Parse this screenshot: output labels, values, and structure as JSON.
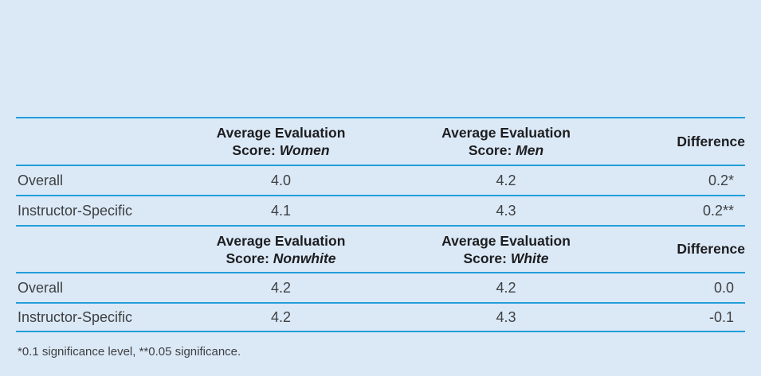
{
  "page": {
    "background_color": "#dbe9f7",
    "rule_color": "#239dd8",
    "header_text_color": "#1d1d1f",
    "body_text_color": "#3e4042"
  },
  "chart_data": [
    {
      "type": "table",
      "columns": [
        "",
        "Average Evaluation Score: Women",
        "Average Evaluation Score: Men",
        "Difference"
      ],
      "header_parts": [
        {
          "line1": "Average Evaluation",
          "line2_prefix": "Score:",
          "line2_italic": "Women"
        },
        {
          "line1": "Average Evaluation",
          "line2_prefix": "Score:",
          "line2_italic": "Men"
        }
      ],
      "difference_label": "Difference",
      "rows": [
        [
          "Overall",
          "4.0",
          "4.2",
          "0.2*"
        ],
        [
          "Instructor-Specific",
          "4.1",
          "4.3",
          "0.2**"
        ]
      ]
    },
    {
      "type": "table",
      "columns": [
        "",
        "Average Evaluation Score: Nonwhite",
        "Average Evaluation Score: White",
        "Difference"
      ],
      "header_parts": [
        {
          "line1": "Average Evaluation",
          "line2_prefix": "Score:",
          "line2_italic": "Nonwhite"
        },
        {
          "line1": "Average Evaluation",
          "line2_prefix": "Score:",
          "line2_italic": "White"
        }
      ],
      "difference_label": "Difference",
      "rows": [
        [
          "Overall",
          "4.2",
          "4.2",
          "0.0"
        ],
        [
          "Instructor-Specific",
          "4.2",
          "4.3",
          "-0.1"
        ]
      ]
    }
  ],
  "footnote": "*0.1 significance level, **0.05 significance."
}
